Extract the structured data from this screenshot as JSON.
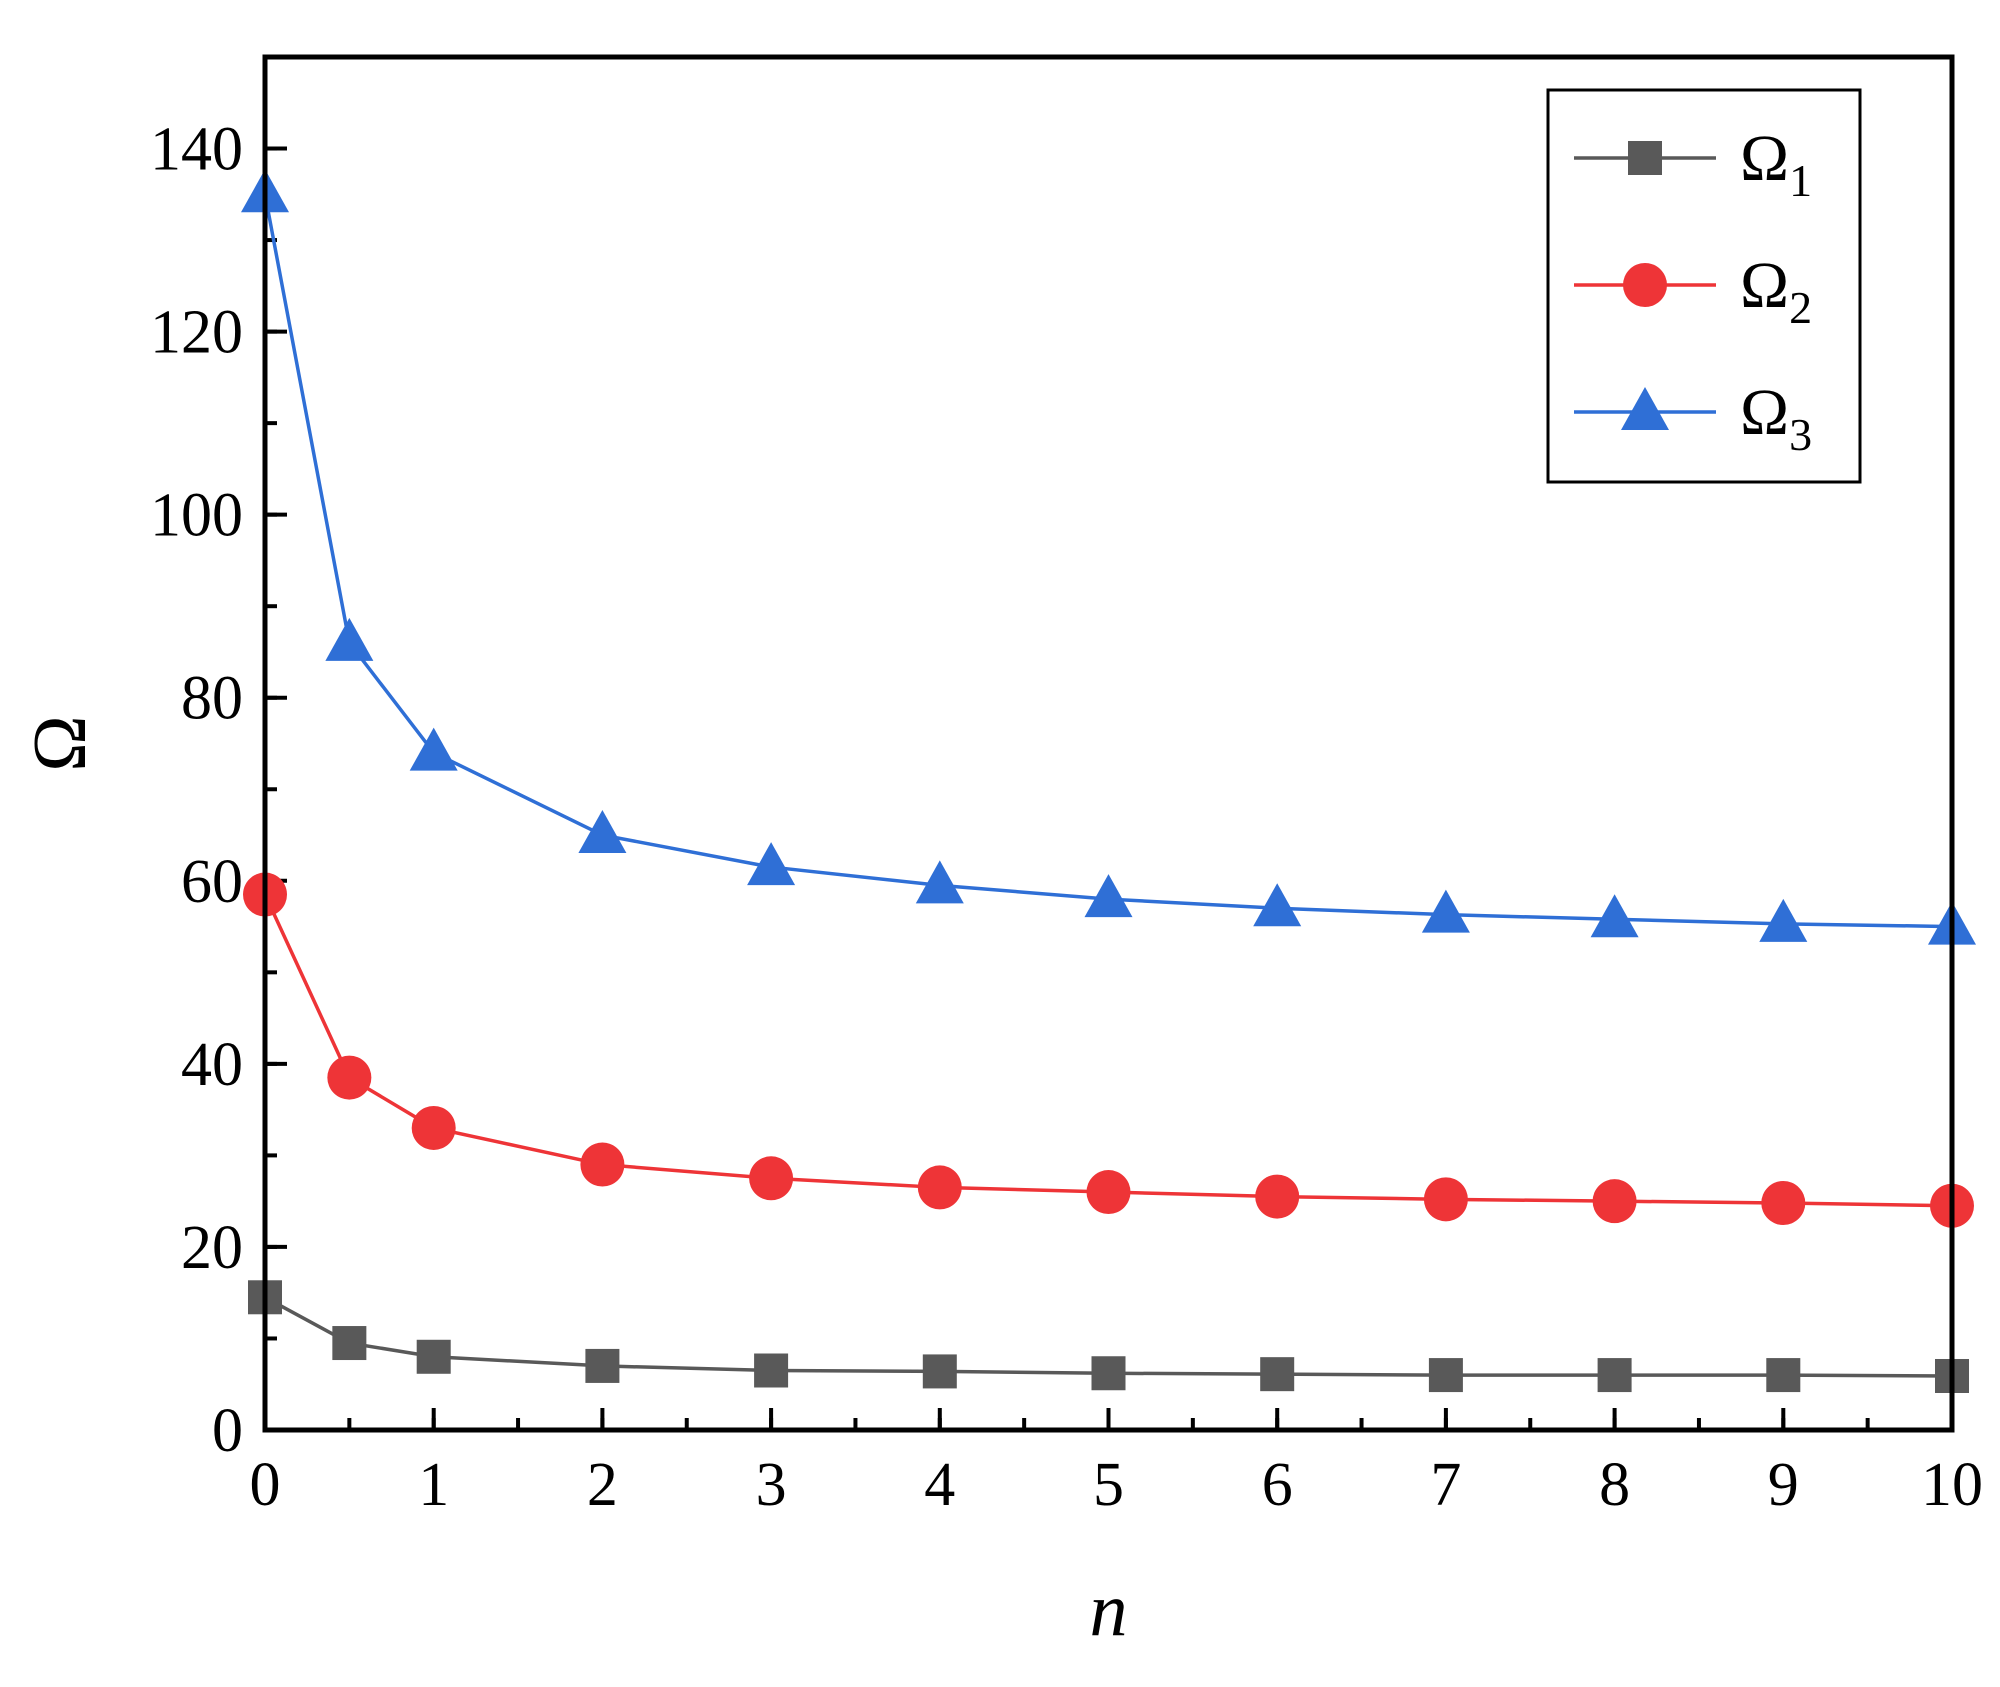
{
  "chart_data": {
    "type": "line",
    "title": "",
    "xlabel": "n",
    "ylabel": "Ω",
    "xlim": [
      0,
      10
    ],
    "ylim": [
      0,
      150
    ],
    "x_major_ticks": [
      0,
      1,
      2,
      3,
      4,
      5,
      6,
      7,
      8,
      9,
      10
    ],
    "x_minor_step": 0.5,
    "y_major_ticks": [
      0,
      20,
      40,
      60,
      80,
      100,
      120,
      140
    ],
    "y_minor_step": 10,
    "grid": false,
    "legend_position": "top-right",
    "frame_color": "#000000",
    "x": [
      0,
      0.5,
      1,
      2,
      3,
      4,
      5,
      6,
      7,
      8,
      9,
      10
    ],
    "series": [
      {
        "name": "omega-1",
        "label_base": "Ω",
        "label_sub": "1",
        "marker": "square",
        "color": "#595959",
        "values": [
          14.5,
          9.5,
          8,
          7,
          6.5,
          6.4,
          6.2,
          6.1,
          6,
          6,
          6,
          5.9
        ]
      },
      {
        "name": "omega-2",
        "label_base": "Ω",
        "label_sub": "2",
        "marker": "circle",
        "color": "#ee3437",
        "values": [
          58.5,
          38.5,
          33,
          29,
          27.5,
          26.5,
          26,
          25.5,
          25.2,
          25,
          24.8,
          24.5
        ]
      },
      {
        "name": "omega-3",
        "label_base": "Ω",
        "label_sub": "3",
        "marker": "triangle",
        "color": "#2f6fd6",
        "values": [
          135,
          86,
          74,
          65,
          61.5,
          59.5,
          58,
          57,
          56.3,
          55.8,
          55.3,
          55
        ]
      }
    ]
  }
}
